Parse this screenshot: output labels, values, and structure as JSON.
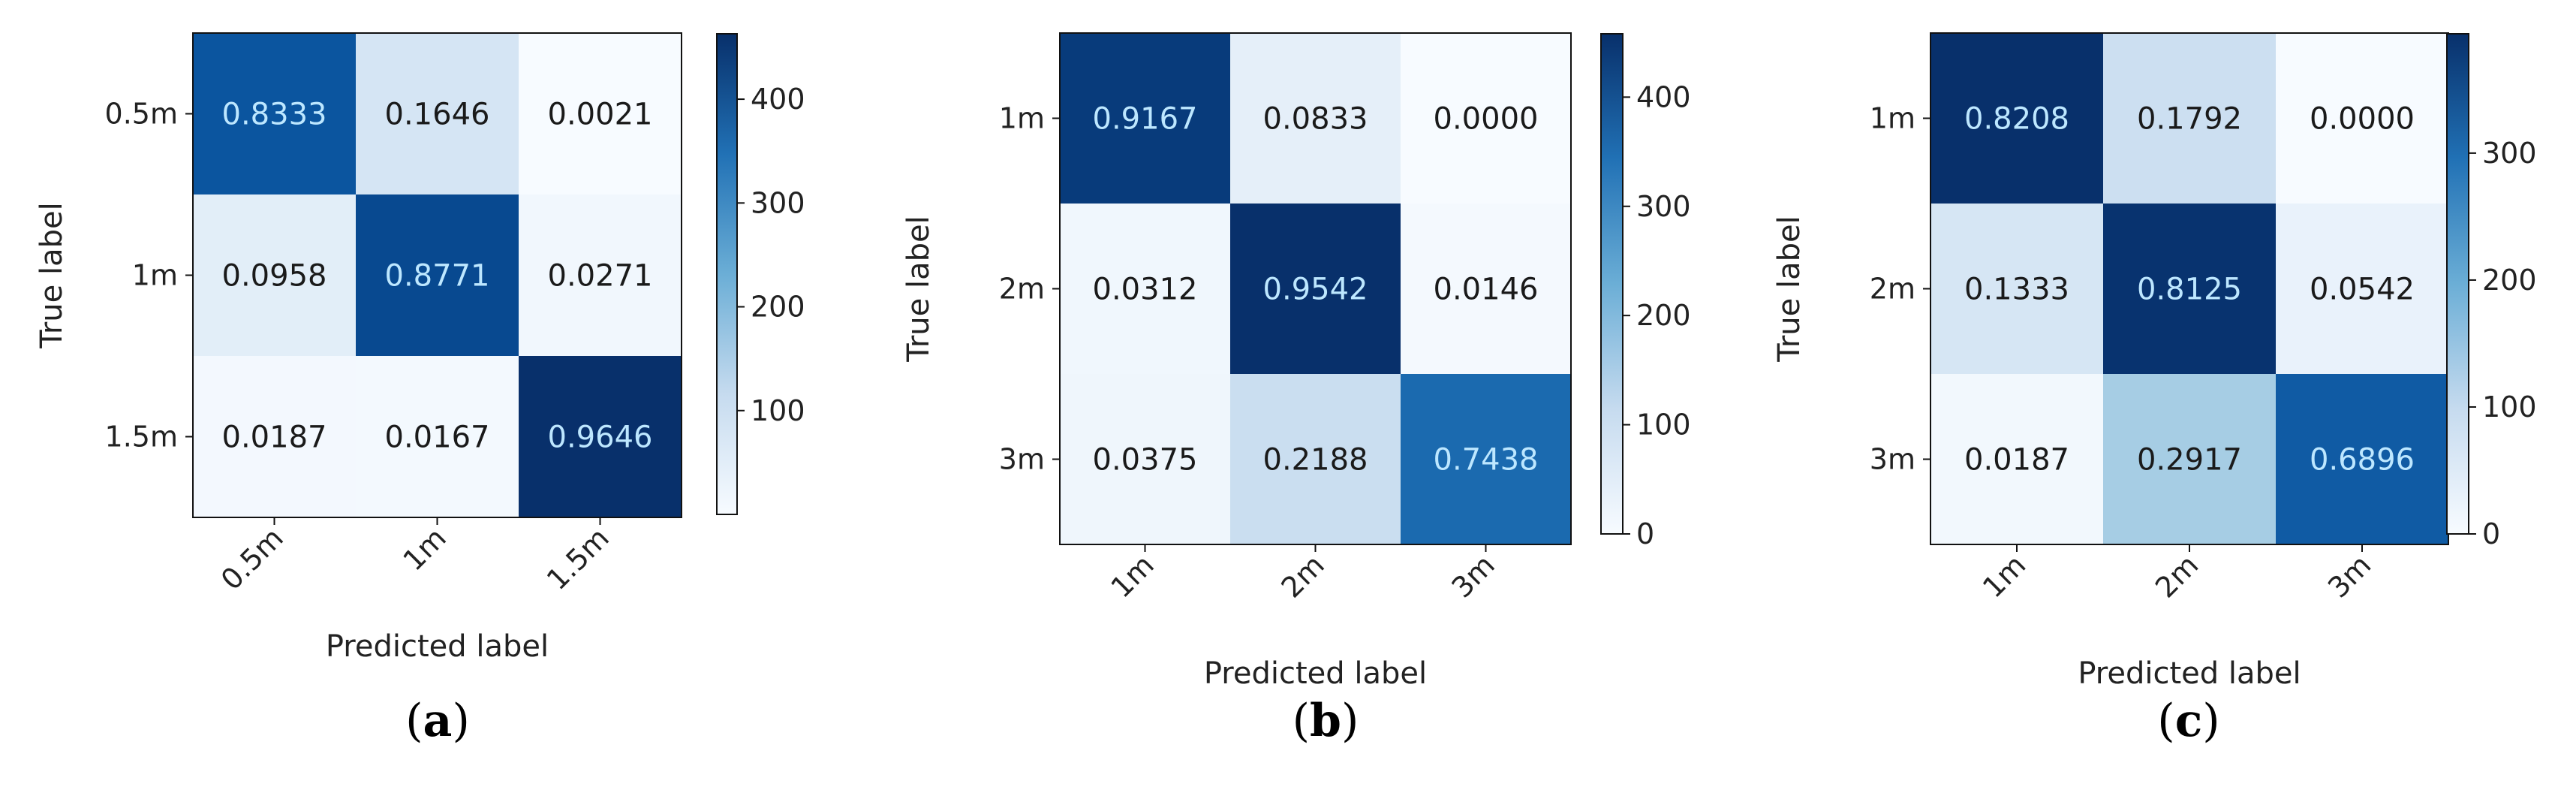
{
  "figure": {
    "panels": [
      "a",
      "b",
      "c"
    ]
  },
  "colors": {
    "low": "#f7fbff",
    "mid1": "#c6dbef",
    "mid2": "#6baed6",
    "mid3": "#2171b5",
    "high": "#08306b",
    "dark_text": "#1a1a1a",
    "light_text": "#bde7ff"
  },
  "chart_data": [
    {
      "type": "heatmap",
      "caption": "a",
      "xlabel": "Predicted label",
      "ylabel": "True label",
      "x_categories": [
        "0.5m",
        "1m",
        "1.5m"
      ],
      "y_categories": [
        "0.5m",
        "1m",
        "1.5m"
      ],
      "values": [
        [
          "0.8333",
          "0.1646",
          "0.0021"
        ],
        [
          "0.0958",
          "0.8771",
          "0.0271"
        ],
        [
          "0.0187",
          "0.0167",
          "0.9646"
        ]
      ],
      "colorbar": {
        "min": 0,
        "max": 463,
        "ticks": [
          "100",
          "200",
          "300",
          "400"
        ],
        "tick_values": [
          100,
          200,
          300,
          400
        ]
      },
      "counts": [
        [
          400,
          79,
          1
        ],
        [
          46,
          421,
          13
        ],
        [
          9,
          8,
          463
        ]
      ]
    },
    {
      "type": "heatmap",
      "caption": "b",
      "xlabel": "Predicted label",
      "ylabel": "True label",
      "x_categories": [
        "1m",
        "2m",
        "3m"
      ],
      "y_categories": [
        "1m",
        "2m",
        "3m"
      ],
      "values": [
        [
          "0.9167",
          "0.0833",
          "0.0000"
        ],
        [
          "0.0312",
          "0.9542",
          "0.0146"
        ],
        [
          "0.0375",
          "0.2188",
          "0.7438"
        ]
      ],
      "colorbar": {
        "min": 0,
        "max": 458,
        "ticks": [
          "0",
          "100",
          "200",
          "300",
          "400"
        ],
        "tick_values": [
          0,
          100,
          200,
          300,
          400
        ]
      },
      "counts": [
        [
          440,
          40,
          0
        ],
        [
          15,
          458,
          7
        ],
        [
          18,
          105,
          357
        ]
      ]
    },
    {
      "type": "heatmap",
      "caption": "c",
      "xlabel": "Predicted label",
      "ylabel": "True label",
      "x_categories": [
        "1m",
        "2m",
        "3m"
      ],
      "y_categories": [
        "1m",
        "2m",
        "3m"
      ],
      "values": [
        [
          "0.8208",
          "0.1792",
          "0.0000"
        ],
        [
          "0.1333",
          "0.8125",
          "0.0542"
        ],
        [
          "0.0187",
          "0.2917",
          "0.6896"
        ]
      ],
      "colorbar": {
        "min": 0,
        "max": 394,
        "ticks": [
          "0",
          "100",
          "200",
          "300"
        ],
        "tick_values": [
          0,
          100,
          200,
          300
        ]
      },
      "counts": [
        [
          394,
          86,
          0
        ],
        [
          64,
          390,
          26
        ],
        [
          9,
          140,
          331
        ]
      ]
    }
  ]
}
